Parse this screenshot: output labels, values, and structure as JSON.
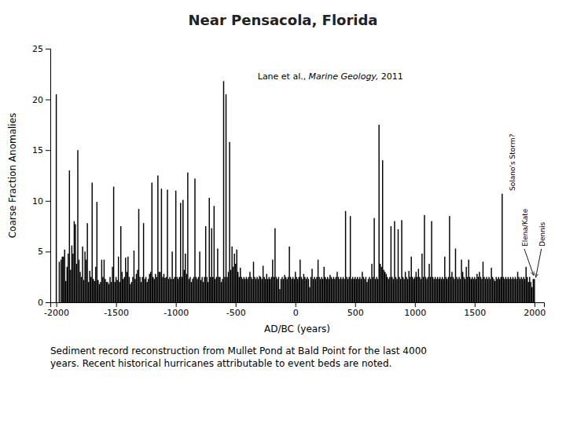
{
  "chart_data": {
    "type": "bar",
    "title": "Near Pensacola, Florida",
    "x_label": "AD/BC (years)",
    "y_label": "Coarse Fraction Anomalies",
    "caption": "Sediment record reconstruction from Mullet Pond at Bald Point for the last 4000\nyears. Recent historical hurricanes attributable to event beds are noted.",
    "annotations": [
      "Lane et al.,",
      "Marine Geology,",
      "2011",
      "Solano's Storm?",
      "Elena/Kate",
      "Dennis"
    ],
    "color": "black",
    "grid": false,
    "xlim": [
      -2050,
      2080
    ],
    "ylim": [
      0,
      25
    ],
    "xticks": [
      -2000,
      -1500,
      -1000,
      -500,
      0,
      500,
      1000,
      1500,
      2000
    ],
    "yticks": [
      0,
      5,
      10,
      15,
      20,
      25
    ],
    "x": [
      -2000,
      -1975,
      -1960,
      -1950,
      -1940,
      -1930,
      -1920,
      -1910,
      -1900,
      -1890,
      -1880,
      -1870,
      -1860,
      -1850,
      -1840,
      -1830,
      -1820,
      -1810,
      -1800,
      -1790,
      -1780,
      -1770,
      -1760,
      -1750,
      -1740,
      -1730,
      -1720,
      -1710,
      -1700,
      -1690,
      -1680,
      -1670,
      -1660,
      -1650,
      -1640,
      -1630,
      -1620,
      -1610,
      -1600,
      -1590,
      -1580,
      -1570,
      -1560,
      -1550,
      -1540,
      -1530,
      -1520,
      -1510,
      -1500,
      -1490,
      -1480,
      -1470,
      -1460,
      -1450,
      -1440,
      -1430,
      -1420,
      -1410,
      -1400,
      -1390,
      -1380,
      -1370,
      -1360,
      -1350,
      -1340,
      -1330,
      -1320,
      -1310,
      -1300,
      -1290,
      -1280,
      -1270,
      -1260,
      -1250,
      -1240,
      -1230,
      -1220,
      -1210,
      -1200,
      -1190,
      -1180,
      -1170,
      -1160,
      -1150,
      -1140,
      -1130,
      -1120,
      -1110,
      -1100,
      -1090,
      -1080,
      -1070,
      -1060,
      -1050,
      -1040,
      -1030,
      -1020,
      -1010,
      -1000,
      -990,
      -980,
      -970,
      -960,
      -950,
      -940,
      -930,
      -920,
      -910,
      -900,
      -890,
      -880,
      -870,
      -860,
      -850,
      -840,
      -830,
      -820,
      -810,
      -800,
      -790,
      -780,
      -770,
      -760,
      -750,
      -740,
      -730,
      -720,
      -710,
      -700,
      -690,
      -680,
      -670,
      -660,
      -650,
      -640,
      -630,
      -620,
      -610,
      -600,
      -590,
      -580,
      -570,
      -560,
      -550,
      -540,
      -530,
      -520,
      -510,
      -500,
      -490,
      -480,
      -470,
      -460,
      -450,
      -440,
      -430,
      -420,
      -410,
      -400,
      -390,
      -380,
      -370,
      -360,
      -350,
      -340,
      -330,
      -320,
      -310,
      -300,
      -290,
      -280,
      -270,
      -260,
      -250,
      -240,
      -230,
      -220,
      -210,
      -200,
      -190,
      -180,
      -170,
      -160,
      -150,
      -140,
      -130,
      -120,
      -110,
      -100,
      -90,
      -80,
      -70,
      -60,
      -50,
      -40,
      -30,
      -20,
      -10,
      0,
      10,
      20,
      30,
      40,
      50,
      60,
      70,
      80,
      90,
      100,
      110,
      120,
      130,
      140,
      150,
      160,
      170,
      180,
      190,
      200,
      210,
      220,
      230,
      240,
      250,
      260,
      270,
      280,
      290,
      300,
      310,
      320,
      330,
      340,
      350,
      360,
      370,
      380,
      390,
      400,
      410,
      420,
      430,
      440,
      450,
      460,
      470,
      480,
      490,
      500,
      510,
      520,
      530,
      540,
      550,
      560,
      570,
      580,
      590,
      600,
      610,
      620,
      630,
      640,
      650,
      660,
      670,
      680,
      690,
      700,
      710,
      720,
      730,
      740,
      750,
      760,
      770,
      780,
      790,
      800,
      810,
      820,
      830,
      840,
      850,
      860,
      870,
      880,
      890,
      900,
      910,
      920,
      930,
      940,
      950,
      960,
      970,
      980,
      990,
      1000,
      1010,
      1020,
      1030,
      1040,
      1050,
      1060,
      1070,
      1080,
      1090,
      1100,
      1110,
      1120,
      1130,
      1140,
      1150,
      1160,
      1170,
      1180,
      1190,
      1200,
      1210,
      1220,
      1230,
      1240,
      1250,
      1260,
      1270,
      1280,
      1290,
      1300,
      1310,
      1320,
      1330,
      1340,
      1350,
      1360,
      1370,
      1380,
      1390,
      1400,
      1410,
      1420,
      1430,
      1440,
      1450,
      1460,
      1470,
      1480,
      1490,
      1500,
      1510,
      1520,
      1530,
      1540,
      1550,
      1560,
      1570,
      1580,
      1590,
      1600,
      1610,
      1620,
      1630,
      1640,
      1650,
      1660,
      1670,
      1680,
      1690,
      1700,
      1710,
      1720,
      1730,
      1740,
      1750,
      1760,
      1770,
      1780,
      1790,
      1800,
      1810,
      1820,
      1830,
      1840,
      1850,
      1860,
      1870,
      1880,
      1890,
      1900,
      1910,
      1920,
      1930,
      1940,
      1950,
      1960,
      1970,
      1980,
      1990,
      2000
    ],
    "values": [
      20.5,
      4.0,
      4.2,
      4.5,
      4.5,
      5.2,
      2.1,
      3.5,
      4.8,
      13.0,
      3.2,
      5.6,
      4.8,
      8.0,
      7.7,
      3.8,
      15.0,
      4.2,
      3.0,
      2.5,
      5.5,
      2.2,
      5.0,
      4.2,
      7.8,
      2.0,
      3.1,
      2.5,
      11.8,
      2.3,
      2.1,
      3.5,
      9.9,
      2.2,
      1.8,
      2.0,
      4.2,
      2.5,
      4.2,
      2.3,
      2.0,
      2.0,
      1.8,
      2.5,
      2.0,
      3.5,
      11.4,
      2.0,
      2.5,
      2.2,
      4.5,
      2.0,
      7.5,
      3.0,
      2.3,
      2.5,
      4.4,
      3.0,
      4.5,
      2.5,
      1.8,
      2.0,
      2.5,
      5.1,
      2.3,
      2.8,
      3.2,
      9.2,
      2.5,
      2.0,
      2.5,
      7.8,
      2.3,
      2.5,
      2.0,
      2.3,
      2.8,
      3.0,
      11.8,
      2.5,
      2.3,
      2.8,
      2.5,
      12.5,
      3.0,
      3.0,
      11.2,
      2.5,
      2.8,
      2.4,
      2.5,
      11.1,
      2.3,
      2.5,
      2.3,
      5.0,
      2.3,
      2.5,
      11.0,
      2.5,
      2.3,
      2.5,
      9.8,
      2.5,
      10.1,
      3.2,
      4.8,
      2.8,
      12.8,
      2.3,
      2.5,
      2.0,
      2.3,
      2.5,
      12.2,
      2.5,
      2.3,
      2.5,
      5.0,
      2.2,
      2.5,
      2.0,
      2.5,
      7.5,
      2.5,
      2.0,
      10.3,
      2.5,
      7.3,
      2.5,
      9.5,
      2.3,
      2.5,
      5.3,
      2.5,
      2.5,
      2.0,
      2.3,
      21.8,
      2.5,
      20.5,
      2.5,
      3.0,
      15.8,
      3.2,
      5.5,
      3.5,
      4.8,
      3.8,
      5.2,
      3.0,
      2.5,
      3.4,
      2.5,
      2.3,
      2.5,
      2.3,
      2.5,
      2.3,
      2.5,
      3.0,
      2.5,
      2.3,
      4.0,
      2.5,
      2.3,
      2.5,
      2.3,
      2.6,
      2.5,
      2.3,
      3.6,
      2.5,
      2.3,
      2.8,
      2.3,
      2.5,
      2.3,
      2.5,
      4.2,
      2.5,
      7.3,
      2.5,
      2.3,
      2.5,
      1.3,
      2.3,
      2.5,
      2.3,
      2.7,
      2.5,
      2.3,
      2.5,
      5.5,
      2.5,
      2.3,
      2.5,
      2.3,
      3.0,
      2.5,
      2.3,
      2.5,
      4.2,
      2.5,
      2.3,
      2.8,
      2.5,
      2.3,
      2.5,
      2.3,
      1.5,
      2.5,
      3.3,
      2.3,
      2.5,
      2.3,
      2.5,
      4.2,
      2.5,
      2.3,
      2.5,
      2.3,
      3.5,
      2.5,
      2.3,
      2.5,
      2.3,
      2.7,
      2.5,
      2.3,
      2.5,
      2.3,
      2.5,
      3.0,
      2.5,
      2.3,
      2.5,
      2.3,
      2.5,
      2.3,
      9.0,
      2.5,
      2.3,
      2.5,
      8.5,
      2.3,
      2.5,
      2.3,
      2.5,
      2.3,
      2.5,
      2.3,
      2.5,
      2.3,
      3.0,
      2.5,
      2.3,
      2.5,
      2.0,
      2.3,
      2.5,
      2.3,
      3.8,
      2.5,
      8.3,
      2.3,
      2.5,
      2.3,
      17.5,
      3.8,
      3.5,
      14.0,
      3.2,
      3.0,
      2.8,
      2.5,
      2.3,
      2.5,
      7.5,
      2.5,
      2.3,
      8.0,
      2.5,
      2.3,
      7.2,
      2.5,
      2.3,
      8.1,
      2.5,
      2.3,
      3.0,
      2.5,
      2.3,
      3.1,
      2.5,
      4.5,
      2.5,
      2.3,
      2.5,
      3.0,
      2.5,
      3.3,
      2.5,
      2.3,
      4.8,
      2.5,
      8.6,
      2.5,
      2.3,
      2.5,
      3.8,
      2.5,
      8.0,
      2.5,
      2.3,
      2.5,
      2.3,
      2.5,
      2.3,
      2.5,
      2.3,
      2.5,
      2.3,
      4.5,
      2.5,
      2.3,
      2.5,
      8.5,
      2.5,
      3.0,
      2.5,
      2.3,
      5.3,
      2.5,
      2.3,
      2.5,
      2.3,
      4.2,
      3.0,
      2.5,
      2.3,
      3.5,
      2.5,
      4.2,
      2.5,
      2.3,
      2.5,
      2.3,
      2.5,
      2.3,
      2.8,
      2.5,
      3.0,
      2.5,
      2.3,
      4.0,
      2.5,
      2.3,
      2.5,
      2.3,
      2.5,
      2.3,
      3.4,
      2.5,
      2.3,
      2.1,
      2.5,
      2.3,
      2.5,
      2.3,
      2.5,
      10.7,
      2.5,
      2.3,
      2.5,
      2.3,
      2.5,
      2.3,
      2.5,
      2.3,
      2.5,
      2.3,
      2.5,
      2.3,
      3.0,
      2.5,
      2.3,
      2.5,
      2.3,
      2.5,
      2.3,
      3.5,
      2.5,
      2.0,
      2.5,
      2.0,
      1.5,
      2.3,
      2.3
    ]
  }
}
